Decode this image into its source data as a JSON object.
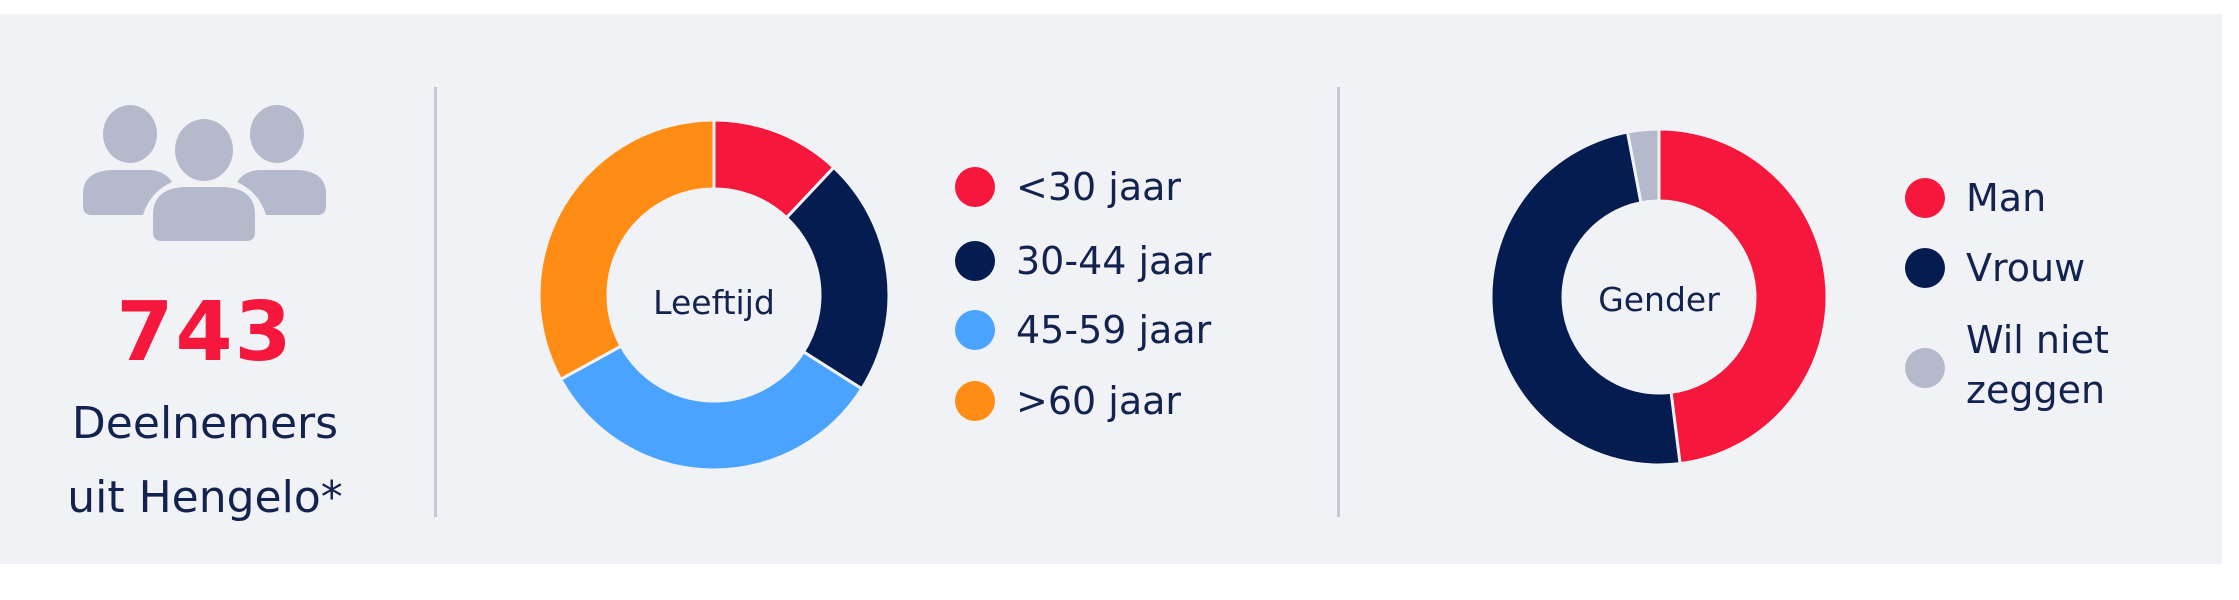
{
  "summary": {
    "icon": "people-group-icon",
    "count": "743",
    "caption_line1": "Deelnemers",
    "caption_line2": "uit Hengelo*"
  },
  "colors": {
    "background": "#f1f2f6",
    "text": "#13234f",
    "accent": "#f5173c",
    "icon": "#b4bacb"
  },
  "chart_data": [
    {
      "type": "pie",
      "donut": true,
      "center_label": "Leeftijd",
      "categories": [
        "<30 jaar",
        "30-44 jaar",
        "45-59 jaar",
        ">60 jaar"
      ],
      "values": [
        12,
        22,
        33,
        33
      ],
      "colors": [
        "#f5173c",
        "#051c50",
        "#4aa3ff",
        "#ff8c14"
      ],
      "legend_placement": "right"
    },
    {
      "type": "pie",
      "donut": true,
      "center_label": "Gender",
      "categories": [
        "Man",
        "Vrouw",
        "Wil niet zeggen"
      ],
      "legend_lines": [
        [
          "Man"
        ],
        [
          "Vrouw"
        ],
        [
          "Wil niet",
          "zeggen"
        ]
      ],
      "values": [
        48,
        49,
        3
      ],
      "colors": [
        "#f5173c",
        "#051c50",
        "#b4bacb"
      ],
      "legend_placement": "right"
    }
  ]
}
